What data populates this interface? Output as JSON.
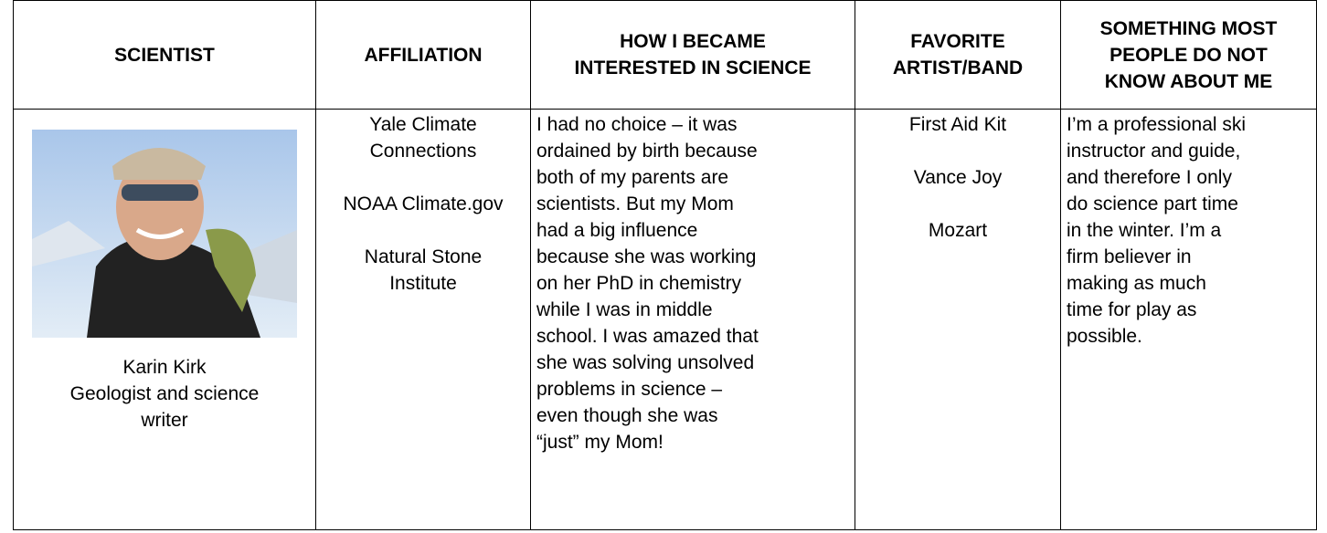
{
  "header": {
    "columns": [
      [
        "SCIENTIST"
      ],
      [
        "AFFILIATION"
      ],
      [
        "HOW I BECAME",
        "INTERESTED IN SCIENCE"
      ],
      [
        "FAVORITE",
        "ARTIST/BAND"
      ],
      [
        "SOMETHING MOST",
        "PEOPLE DO NOT",
        "KNOW ABOUT ME"
      ]
    ]
  },
  "row": {
    "scientist": [
      "Karin Kirk",
      "Geologist and science",
      "writer"
    ],
    "affiliations": [
      [
        "Yale Climate",
        "Connections"
      ],
      [
        "NOAA Climate.gov"
      ],
      [
        "Natural Stone",
        "Institute"
      ]
    ],
    "interest": [
      "I had no choice – it was",
      "ordained by birth because",
      "both of my parents are",
      "scientists. But my Mom",
      "had a big influence",
      "because she was working",
      "on her PhD in chemistry",
      "while I was in middle",
      "school. I was amazed that",
      "she was solving unsolved",
      "problems in science –",
      "even though she was",
      "“just” my Mom!"
    ],
    "bands": [
      "First Aid Kit",
      "Vance Joy",
      "Mozart"
    ],
    "something": [
      "I’m a professional ski",
      "instructor and guide,",
      "and therefore I only",
      "do science part time",
      "in the winter. I’m a",
      "firm believer in",
      "making as much",
      "time for play as",
      "possible."
    ]
  }
}
